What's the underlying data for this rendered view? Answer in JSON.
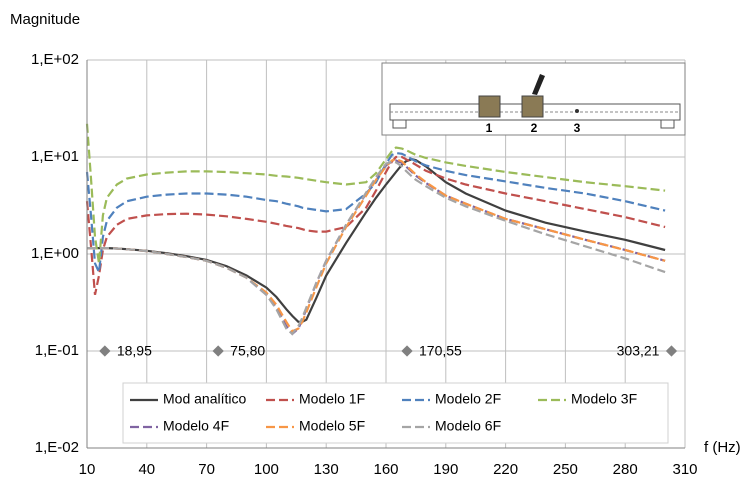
{
  "chart_data": {
    "type": "line",
    "ylabel": "Magnitude",
    "xlabel": "f (Hz)",
    "log_y": true,
    "grid": true,
    "xlim": [
      10,
      310
    ],
    "xticks": [
      10,
      40,
      70,
      100,
      130,
      160,
      190,
      220,
      250,
      280,
      310
    ],
    "ylim": [
      0.01,
      100
    ],
    "yticks": [
      {
        "value": 0.01,
        "label": "1,E-02"
      },
      {
        "value": 0.1,
        "label": "1,E-01"
      },
      {
        "value": 1,
        "label": "1,E+00"
      },
      {
        "value": 10,
        "label": "1,E+01"
      },
      {
        "value": 100,
        "label": "1,E+02"
      }
    ],
    "x": [
      10,
      12,
      14,
      16,
      18,
      20,
      25,
      30,
      40,
      50,
      60,
      70,
      80,
      90,
      100,
      105,
      110,
      113,
      116,
      118,
      120,
      125,
      130,
      140,
      150,
      155,
      160,
      163,
      165,
      168,
      170,
      173,
      175,
      180,
      190,
      200,
      220,
      240,
      260,
      280,
      300
    ],
    "series": [
      {
        "name": "Mod analítico",
        "color": "#404040",
        "dashed": false,
        "values": [
          1.15,
          1.15,
          1.15,
          1.15,
          1.15,
          1.15,
          1.14,
          1.12,
          1.08,
          1.02,
          0.95,
          0.87,
          0.75,
          0.6,
          0.45,
          0.36,
          0.27,
          0.23,
          0.2,
          0.2,
          0.21,
          0.35,
          0.6,
          1.3,
          2.7,
          3.8,
          5.2,
          6.2,
          7,
          8.3,
          9,
          9.5,
          9.3,
          8,
          5.5,
          4.2,
          2.8,
          2.1,
          1.7,
          1.4,
          1.1
        ]
      },
      {
        "name": "Modelo 1F",
        "color": "#c0504d",
        "dashed": true,
        "values": [
          3.5,
          1.2,
          0.38,
          0.6,
          1.1,
          1.5,
          2.0,
          2.3,
          2.5,
          2.58,
          2.6,
          2.55,
          2.45,
          2.3,
          2.15,
          2.05,
          1.95,
          1.9,
          1.85,
          1.8,
          1.75,
          1.7,
          1.7,
          1.9,
          3.0,
          4.5,
          7,
          9,
          10,
          10,
          9.5,
          8.8,
          8.3,
          7.2,
          6,
          5.2,
          4.2,
          3.5,
          2.9,
          2.4,
          1.9
        ]
      },
      {
        "name": "Modelo 2F",
        "color": "#4f81bd",
        "dashed": true,
        "values": [
          7,
          2.5,
          0.8,
          0.65,
          1.5,
          2.2,
          3.0,
          3.5,
          3.9,
          4.1,
          4.2,
          4.2,
          4.1,
          3.9,
          3.6,
          3.5,
          3.3,
          3.2,
          3.1,
          3.0,
          2.95,
          2.85,
          2.75,
          2.9,
          4.2,
          5.5,
          8.5,
          10.5,
          11,
          10.8,
          10.3,
          9.5,
          9,
          8.2,
          7.2,
          6.5,
          5.6,
          4.8,
          4.2,
          3.5,
          2.8
        ]
      },
      {
        "name": "Modelo 3F",
        "color": "#9bbb59",
        "dashed": true,
        "values": [
          22,
          6,
          1.5,
          0.8,
          2.5,
          3.8,
          5.2,
          6,
          6.6,
          6.9,
          7.1,
          7.1,
          7.0,
          6.8,
          6.6,
          6.4,
          6.3,
          6.2,
          6.1,
          6.0,
          5.9,
          5.7,
          5.5,
          5.2,
          5.5,
          6.8,
          9.5,
          11.5,
          12.5,
          12.2,
          11.8,
          11,
          10.5,
          9.8,
          8.8,
          8.1,
          7.0,
          6.2,
          5.5,
          5.0,
          4.5
        ]
      },
      {
        "name": "Modelo 4F",
        "color": "#8064a2",
        "dashed": true,
        "values": [
          1.15,
          1.15,
          1.15,
          1.15,
          1.15,
          1.15,
          1.14,
          1.12,
          1.07,
          1.0,
          0.93,
          0.85,
          0.72,
          0.57,
          0.38,
          0.28,
          0.18,
          0.15,
          0.17,
          0.21,
          0.27,
          0.5,
          0.85,
          2.0,
          4.2,
          6,
          8.2,
          9,
          9.2,
          8.7,
          8,
          7,
          6.4,
          5.4,
          4,
          3.3,
          2.3,
          1.8,
          1.4,
          1.1,
          0.85
        ]
      },
      {
        "name": "Modelo 5F",
        "color": "#f79646",
        "dashed": true,
        "values": [
          1.15,
          1.15,
          1.15,
          1.15,
          1.15,
          1.15,
          1.14,
          1.12,
          1.07,
          1.0,
          0.93,
          0.85,
          0.72,
          0.57,
          0.4,
          0.3,
          0.2,
          0.16,
          0.17,
          0.2,
          0.25,
          0.45,
          0.8,
          1.9,
          4,
          5.8,
          8,
          9.2,
          9.5,
          9,
          8.2,
          7.2,
          6.6,
          5.5,
          4,
          3.3,
          2.3,
          1.8,
          1.4,
          1.1,
          0.85
        ]
      },
      {
        "name": "Modelo 6F",
        "color": "#a5a5a5",
        "dashed": true,
        "values": [
          1.15,
          1.15,
          1.15,
          1.15,
          1.15,
          1.15,
          1.14,
          1.12,
          1.07,
          1.0,
          0.93,
          0.85,
          0.72,
          0.57,
          0.38,
          0.27,
          0.17,
          0.15,
          0.18,
          0.22,
          0.28,
          0.5,
          0.85,
          2,
          4.3,
          6.2,
          8.5,
          9,
          8.8,
          8,
          7.2,
          6.3,
          5.8,
          5,
          3.8,
          3.1,
          2.2,
          1.6,
          1.2,
          0.9,
          0.65
        ]
      }
    ],
    "annotations": [
      {
        "x": 18.95,
        "y": 0.1,
        "label": "18,95"
      },
      {
        "x": 75.8,
        "y": 0.1,
        "label": "75,80"
      },
      {
        "x": 170.55,
        "y": 0.1,
        "label": "170,55"
      },
      {
        "x": 303.21,
        "y": 0.1,
        "label": "303,21"
      }
    ],
    "inset": {
      "labels": [
        "1",
        "2",
        "3"
      ]
    }
  }
}
